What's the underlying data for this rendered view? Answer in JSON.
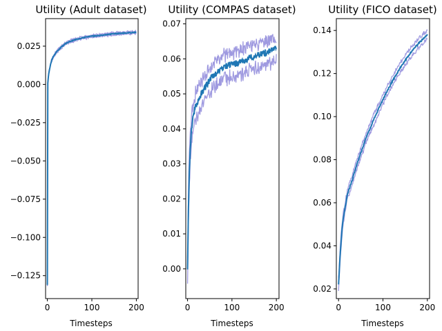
{
  "chart_data": [
    {
      "type": "line",
      "title": "Utility (Adult dataset)",
      "xlabel": "Timesteps",
      "ylabel": "",
      "xlim": [
        -4,
        204
      ],
      "ylim": [
        -0.14,
        0.043
      ],
      "xticks": [
        0,
        100,
        200
      ],
      "xtick_labels": [
        "0",
        "100",
        "200"
      ],
      "yticks": [
        -0.125,
        -0.1,
        -0.075,
        -0.05,
        -0.025,
        0.0,
        0.025
      ],
      "ytick_labels": [
        "−0.125",
        "−0.100",
        "−0.075",
        "−0.050",
        "−0.025",
        "0.000",
        "0.025"
      ],
      "grid": false,
      "band_color": "#9f9ae0",
      "line_color": "#1f77b4",
      "noise": 0.0004,
      "series": [
        {
          "x": [
            0,
            1,
            2,
            3,
            5,
            7,
            10,
            15,
            20,
            30,
            40,
            50,
            60,
            80,
            100,
            120,
            140,
            160,
            180,
            200
          ],
          "mean": [
            -0.131,
            0.001,
            0.004,
            0.007,
            0.01,
            0.013,
            0.016,
            0.019,
            0.021,
            0.024,
            0.0265,
            0.028,
            0.029,
            0.0305,
            0.0315,
            0.032,
            0.0328,
            0.0333,
            0.0337,
            0.034
          ],
          "spread": 0.0008
        }
      ]
    },
    {
      "type": "line",
      "title": "Utility (COMPAS dataset)",
      "xlabel": "Timesteps",
      "ylabel": "",
      "xlim": [
        -4,
        206
      ],
      "ylim": [
        -0.0085,
        0.0715
      ],
      "xticks": [
        0,
        100,
        200
      ],
      "xtick_labels": [
        "0",
        "100",
        "200"
      ],
      "yticks": [
        0.0,
        0.01,
        0.02,
        0.03,
        0.04,
        0.05,
        0.06,
        0.07
      ],
      "ytick_labels": [
        "0.00",
        "0.01",
        "0.02",
        "0.03",
        "0.04",
        "0.05",
        "0.06",
        "0.07"
      ],
      "grid": false,
      "band_color": "#9f9ae0",
      "line_color": "#1f77b4",
      "noise": 0.0016,
      "series": [
        {
          "x": [
            0,
            2,
            4,
            6,
            8,
            10,
            15,
            20,
            30,
            40,
            50,
            60,
            80,
            100,
            120,
            140,
            160,
            180,
            200
          ],
          "mean": [
            -0.001,
            0.018,
            0.028,
            0.034,
            0.038,
            0.041,
            0.045,
            0.047,
            0.05,
            0.052,
            0.054,
            0.0555,
            0.0575,
            0.0585,
            0.059,
            0.0605,
            0.061,
            0.062,
            0.063
          ],
          "spread": 0.0035
        }
      ]
    },
    {
      "type": "line",
      "title": "Utility (FICO dataset)",
      "xlabel": "Timesteps",
      "ylabel": "",
      "xlim": [
        -5,
        205
      ],
      "ylim": [
        0.0155,
        0.1455
      ],
      "xticks": [
        0,
        100,
        200
      ],
      "xtick_labels": [
        "0",
        "100",
        "200"
      ],
      "yticks": [
        0.02,
        0.04,
        0.06,
        0.08,
        0.1,
        0.12,
        0.14
      ],
      "ytick_labels": [
        "0.02",
        "0.04",
        "0.06",
        "0.08",
        "0.10",
        "0.12",
        "0.14"
      ],
      "grid": false,
      "band_color": "#9f9ae0",
      "line_color": "#1f77b4",
      "noise": 0.0006,
      "series": [
        {
          "x": [
            0,
            2,
            4,
            6,
            8,
            10,
            15,
            20,
            30,
            40,
            50,
            60,
            80,
            100,
            120,
            140,
            160,
            180,
            200
          ],
          "mean": [
            0.022,
            0.03,
            0.037,
            0.043,
            0.048,
            0.052,
            0.058,
            0.064,
            0.07,
            0.077,
            0.083,
            0.089,
            0.099,
            0.108,
            0.116,
            0.123,
            0.129,
            0.134,
            0.138
          ],
          "spread": 0.0022
        }
      ]
    }
  ]
}
